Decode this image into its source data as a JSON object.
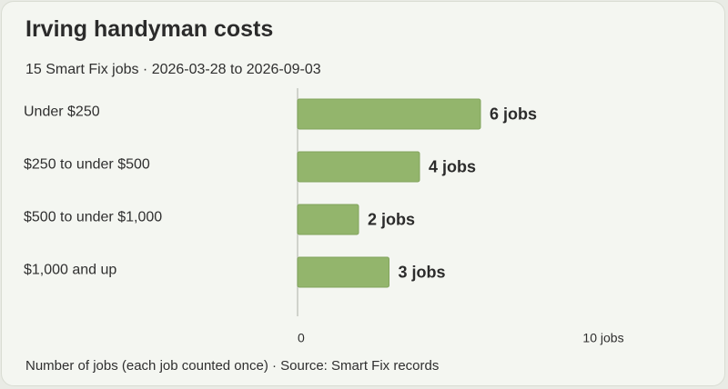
{
  "chart_data": {
    "type": "bar",
    "orientation": "horizontal",
    "title": "Irving handyman costs",
    "subtitle": "15 Smart Fix jobs · 2026-03-28 to 2026-09-03",
    "categories": [
      "Under $250",
      "$250 to under $500",
      "$500 to under $1,000",
      "$1,000 and up"
    ],
    "values": [
      6,
      4,
      2,
      3
    ],
    "value_labels": [
      "6 jobs",
      "4 jobs",
      "2 jobs",
      "3 jobs"
    ],
    "xlim": [
      0,
      10
    ],
    "x_ticks": [
      {
        "value": 0,
        "label": "0"
      },
      {
        "value": 10,
        "label": "10 jobs"
      }
    ],
    "footnote": "Number of jobs (each job counted once) · Source: Smart Fix records",
    "grid": false,
    "colors": {
      "bar": "#93b56c",
      "bar_edge": "#82a45d",
      "axis": "#c4c7bf"
    }
  }
}
